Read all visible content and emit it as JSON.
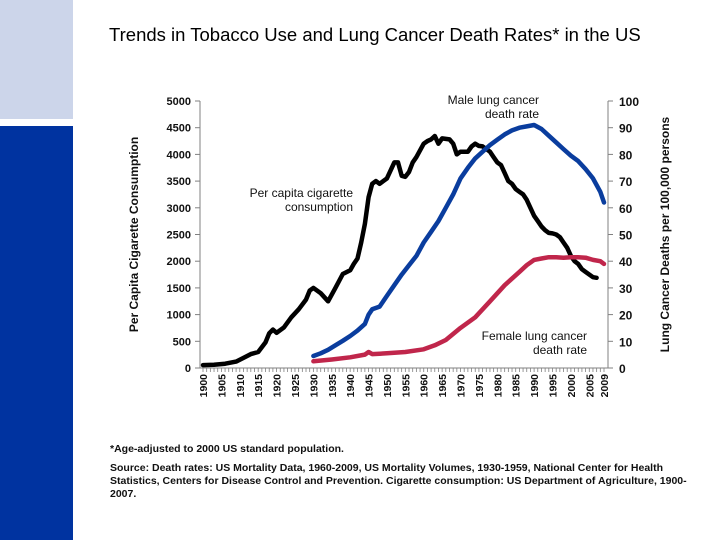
{
  "page": {
    "title": "Trends in Tobacco Use and Lung Cancer Death Rates* in the US",
    "footnote": "*Age-adjusted to 2000 US standard population.",
    "source": "Source: Death rates: US Mortality Data, 1960-2009, US Mortality Volumes, 1930-1959, National Center for Health Statistics, Centers for Disease Control and Prevention. Cigarette consumption: US Department of Agriculture, 1900-2007.",
    "colors": {
      "sidebar_light": "#ccd5ea",
      "sidebar_dark": "#0033a0"
    }
  },
  "chart_data": {
    "type": "line",
    "title": "Trends in Tobacco Use and Lung Cancer Death Rates* in the US",
    "xlabel": "",
    "ylabel_left": "Per Capita Cigarette Consumption",
    "ylabel_right": "Lung Cancer Deaths per 100,000 persons",
    "xlim": [
      1900,
      2009
    ],
    "ylim_left": [
      0,
      5000
    ],
    "ylim_right": [
      0,
      100
    ],
    "x_ticks": [
      "1900",
      "1905",
      "1910",
      "1915",
      "1920",
      "1925",
      "1930",
      "1935",
      "1940",
      "1945",
      "1950",
      "1955",
      "1960",
      "1965",
      "1970",
      "1975",
      "1980",
      "1985",
      "1990",
      "1995",
      "2000",
      "2005",
      "2009"
    ],
    "y_ticks_left": [
      "0",
      "500",
      "1000",
      "1500",
      "2000",
      "2500",
      "3000",
      "3500",
      "4000",
      "4500",
      "5000"
    ],
    "y_ticks_right": [
      "0",
      "10",
      "20",
      "30",
      "40",
      "50",
      "60",
      "70",
      "80",
      "90",
      "100"
    ],
    "grid": false,
    "series": [
      {
        "name": "Per capita cigarette consumption",
        "axis": "left",
        "color": "#000000",
        "label": [
          "Per capita cigarette",
          "consumption"
        ],
        "x": [
          1900,
          1903,
          1906,
          1909,
          1911,
          1913,
          1915,
          1917,
          1918,
          1919,
          1920,
          1922,
          1924,
          1926,
          1928,
          1929,
          1930,
          1932,
          1934,
          1936,
          1938,
          1940,
          1941,
          1942,
          1943,
          1944,
          1945,
          1946,
          1947,
          1948,
          1949,
          1950,
          1951,
          1952,
          1953,
          1954,
          1955,
          1956,
          1957,
          1958,
          1960,
          1961,
          1962,
          1963,
          1964,
          1965,
          1966,
          1967,
          1968,
          1969,
          1970,
          1972,
          1973,
          1974,
          1975,
          1976,
          1977,
          1978,
          1979,
          1980,
          1981,
          1982,
          1983,
          1984,
          1985,
          1986,
          1987,
          1988,
          1989,
          1990,
          1991,
          1992,
          1993,
          1994,
          1995,
          1996,
          1997,
          1998,
          1999,
          2000,
          2001,
          2002,
          2003,
          2004,
          2005,
          2006,
          2007
        ],
        "values": [
          54,
          60,
          80,
          120,
          190,
          260,
          300,
          480,
          650,
          720,
          660,
          760,
          950,
          1100,
          1280,
          1450,
          1500,
          1400,
          1250,
          1500,
          1760,
          1830,
          1950,
          2050,
          2350,
          2700,
          3200,
          3450,
          3500,
          3450,
          3500,
          3550,
          3700,
          3850,
          3850,
          3600,
          3580,
          3670,
          3850,
          3950,
          4200,
          4250,
          4280,
          4345,
          4200,
          4300,
          4290,
          4280,
          4200,
          4000,
          4050,
          4050,
          4150,
          4200,
          4160,
          4150,
          4100,
          4050,
          3950,
          3850,
          3800,
          3650,
          3500,
          3450,
          3350,
          3300,
          3250,
          3150,
          3000,
          2850,
          2750,
          2650,
          2580,
          2530,
          2520,
          2500,
          2450,
          2350,
          2250,
          2100,
          2000,
          1950,
          1850,
          1800,
          1750,
          1700,
          1690
        ]
      },
      {
        "name": "Male lung cancer death rate",
        "axis": "right",
        "color": "#0a3d9e",
        "label": [
          "Male lung cancer",
          "death rate"
        ],
        "x": [
          1930,
          1932,
          1934,
          1936,
          1938,
          1940,
          1942,
          1944,
          1945,
          1946,
          1948,
          1950,
          1952,
          1954,
          1956,
          1958,
          1960,
          1962,
          1964,
          1966,
          1968,
          1970,
          1972,
          1974,
          1976,
          1978,
          1980,
          1982,
          1984,
          1986,
          1988,
          1990,
          1992,
          1994,
          1996,
          1998,
          2000,
          2002,
          2004,
          2006,
          2008,
          2009
        ],
        "values": [
          4.5,
          5.5,
          6.8,
          8.5,
          10.2,
          12,
          14,
          16.5,
          20,
          22,
          23,
          27,
          31,
          35,
          38.5,
          42,
          47,
          51,
          55,
          60,
          65,
          71,
          75,
          78.5,
          81,
          83.5,
          85.5,
          87.5,
          89,
          90,
          90.5,
          91,
          89.5,
          87,
          84.5,
          82,
          79.5,
          77.5,
          74.5,
          71,
          66,
          62
        ]
      },
      {
        "name": "Female lung cancer death rate",
        "axis": "right",
        "color": "#c0264b",
        "label": [
          "Female lung cancer",
          "death rate"
        ],
        "x": [
          1930,
          1935,
          1940,
          1944,
          1945,
          1946,
          1950,
          1955,
          1960,
          1963,
          1966,
          1970,
          1974,
          1978,
          1982,
          1986,
          1988,
          1990,
          1992,
          1994,
          1996,
          1998,
          2000,
          2002,
          2004,
          2006,
          2008,
          2009
        ],
        "values": [
          2.5,
          3.2,
          4.0,
          5.0,
          6.0,
          5.2,
          5.5,
          6.0,
          7.0,
          8.5,
          10.5,
          15,
          19,
          25,
          31,
          36,
          38.5,
          40.5,
          41,
          41.5,
          41.5,
          41.3,
          41.5,
          41.5,
          41.3,
          40.5,
          40,
          39
        ]
      }
    ],
    "annotations": [
      "Per capita cigarette consumption",
      "Male lung cancer death rate",
      "Female lung cancer death rate"
    ]
  }
}
